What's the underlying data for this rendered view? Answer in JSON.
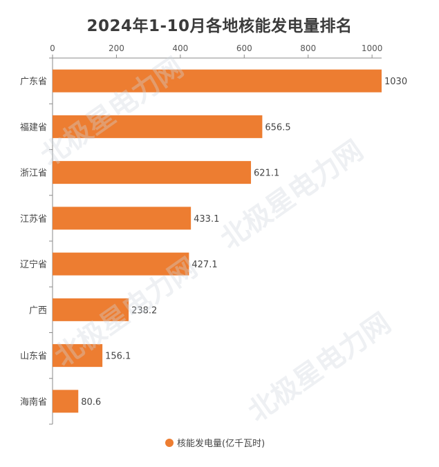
{
  "chart_data": {
    "type": "bar",
    "orientation": "horizontal",
    "title": "2024年1-10月各地核能发电量排名",
    "categories": [
      "广东省",
      "福建省",
      "浙江省",
      "江苏省",
      "辽宁省",
      "广西",
      "山东省",
      "海南省"
    ],
    "series": [
      {
        "name": "核能发电量(亿千瓦时)",
        "values": [
          1030,
          656.5,
          621.1,
          433.1,
          427.1,
          238.2,
          156.1,
          80.6
        ],
        "value_labels": [
          "1030",
          "656.5",
          "621.1",
          "433.1",
          "427.1",
          "238.2",
          "156.1",
          "80.6"
        ]
      }
    ],
    "x_ticks": [
      "0",
      "200",
      "400",
      "600",
      "800",
      "1000"
    ],
    "xlim": [
      0,
      1030
    ],
    "x_axis_position": "top",
    "grid": false,
    "legend": "bottom-center",
    "colors": {
      "bar": "#ED7D31",
      "legend_marker": "#ED7D31",
      "axis": "#888888"
    }
  },
  "watermark": {
    "text": "北极星电力网"
  }
}
